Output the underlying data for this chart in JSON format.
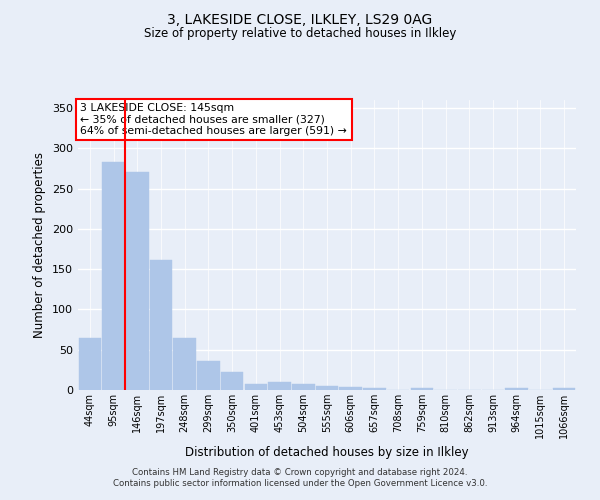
{
  "title": "3, LAKESIDE CLOSE, ILKLEY, LS29 0AG",
  "subtitle": "Size of property relative to detached houses in Ilkley",
  "xlabel": "Distribution of detached houses by size in Ilkley",
  "ylabel": "Number of detached properties",
  "footer_line1": "Contains HM Land Registry data © Crown copyright and database right 2024.",
  "footer_line2": "Contains public sector information licensed under the Open Government Licence v3.0.",
  "annotation_line1": "3 LAKESIDE CLOSE: 145sqm",
  "annotation_line2": "← 35% of detached houses are smaller (327)",
  "annotation_line3": "64% of semi-detached houses are larger (591) →",
  "categories": [
    "44sqm",
    "95sqm",
    "146sqm",
    "197sqm",
    "248sqm",
    "299sqm",
    "350sqm",
    "401sqm",
    "453sqm",
    "504sqm",
    "555sqm",
    "606sqm",
    "657sqm",
    "708sqm",
    "759sqm",
    "810sqm",
    "862sqm",
    "913sqm",
    "964sqm",
    "1015sqm",
    "1066sqm"
  ],
  "values": [
    65,
    283,
    271,
    161,
    65,
    36,
    22,
    8,
    10,
    8,
    5,
    4,
    3,
    0,
    2,
    0,
    0,
    0,
    2,
    0,
    2
  ],
  "bar_color": "#aec6e8",
  "bar_edgecolor": "#aec6e8",
  "red_line_x": 1.5,
  "ylim": [
    0,
    360
  ],
  "yticks": [
    0,
    50,
    100,
    150,
    200,
    250,
    300,
    350
  ],
  "bg_color": "#e8eef8",
  "grid_color": "white",
  "annotation_box_facecolor": "white",
  "annotation_box_edgecolor": "red"
}
